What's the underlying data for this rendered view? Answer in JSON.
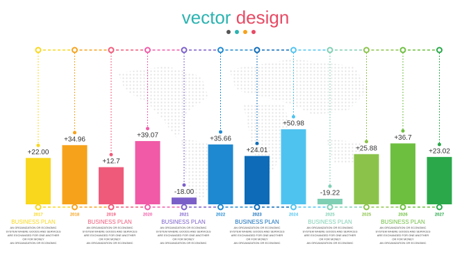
{
  "chart_data": {
    "type": "bar",
    "title": [
      "vector",
      "design"
    ],
    "categories": [
      "2017",
      "2018",
      "2019",
      "2020",
      "2021",
      "2022",
      "2023",
      "2024",
      "2025",
      "2025",
      "2026",
      "2027"
    ],
    "values": [
      22,
      34.96,
      12.7,
      39.07,
      -18,
      35.66,
      24.01,
      50.98,
      -19.22,
      25.88,
      36.7,
      23.02
    ],
    "value_labels": [
      "+22.00",
      "+34.96",
      "+12.7",
      "+39.07",
      "-18.00",
      "+35.66",
      "+24.01",
      "+50.98",
      "-19.22",
      "+25.88",
      "+36.7",
      "+23.02"
    ],
    "colors": [
      "#f9d71c",
      "#f7a21b",
      "#ef5a7a",
      "#f05aa7",
      "#7b5fc9",
      "#1e88d0",
      "#0d6bb8",
      "#4fc3f0",
      "#7ecfb3",
      "#8bc34a",
      "#6dbf3f",
      "#2aa84a"
    ],
    "captions": [
      {
        "title": "BUSINESS PLAN",
        "lines": [
          "AN ORGANIZATION OR ECONOMIC",
          "SYSTEM WHERE GOODS AND SERVICES",
          "ARE EXCHANGED FOR ONE ANOTHER",
          "OR FOR MONEY",
          "AN ORGANIZATION OR ECONOMIC"
        ]
      },
      {
        "title": "BUSINESS PLAN",
        "lines": [
          "AN ORGANIZATION OR ECONOMIC",
          "SYSTEM WHERE GOODS AND SERVICES",
          "ARE EXCHANGED FOR ONE ANOTHER",
          "OR FOR MONEY",
          "AN ORGANIZATION OR ECONOMIC"
        ]
      },
      {
        "title": "BUSINESS PLAN",
        "lines": [
          "AN ORGANIZATION OR ECONOMIC",
          "SYSTEM WHERE GOODS AND SERVICES",
          "ARE EXCHANGED FOR ONE ANOTHER",
          "OR FOR MONEY",
          "AN ORGANIZATION OR ECONOMIC"
        ]
      },
      {
        "title": "BUSINESS PLAN",
        "lines": [
          "AN ORGANIZATION OR ECONOMIC",
          "SYSTEM WHERE GOODS AND SERVICES",
          "ARE EXCHANGED FOR ONE ANOTHER",
          "OR FOR MONEY",
          "AN ORGANIZATION OR ECONOMIC"
        ]
      },
      {
        "title": "BUSINESS PLAN",
        "lines": [
          "AN ORGANIZATION OR ECONOMIC",
          "SYSTEM WHERE GOODS AND SERVICES",
          "ARE EXCHANGED FOR ONE ANOTHER",
          "OR FOR MONEY",
          "AN ORGANIZATION OR ECONOMIC"
        ]
      },
      {
        "title": "BUSINESS PLAN",
        "lines": [
          "AN ORGANIZATION OR ECONOMIC",
          "SYSTEM WHERE GOODS AND SERVICES",
          "ARE EXCHANGED FOR ONE ANOTHER",
          "OR FOR MONEY",
          "AN ORGANIZATION OR ECONOMIC"
        ]
      }
    ]
  }
}
